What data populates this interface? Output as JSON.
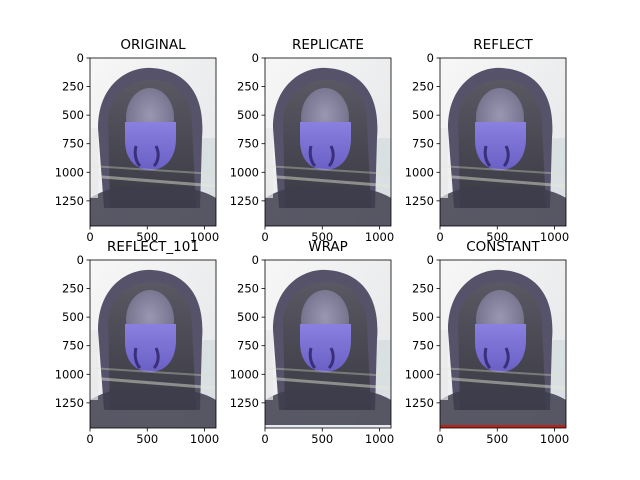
{
  "figure": {
    "background": "#ffffff",
    "layout": "2x3 grid of image subplots"
  },
  "chart_data": [
    {
      "type": "image",
      "title": "ORIGINAL",
      "xticks": [
        0,
        500,
        1000
      ],
      "yticks": [
        0,
        250,
        500,
        750,
        1000,
        1250
      ],
      "xlim": [
        0,
        1100
      ],
      "ylim": [
        1470,
        0
      ],
      "border": "none",
      "border_color": ""
    },
    {
      "type": "image",
      "title": "REPLICATE",
      "xticks": [
        0,
        500,
        1000
      ],
      "yticks": [
        0,
        250,
        500,
        750,
        1000,
        1250
      ],
      "xlim": [
        0,
        1100
      ],
      "ylim": [
        1470,
        0
      ],
      "border": "replicate",
      "border_color": ""
    },
    {
      "type": "image",
      "title": "REFLECT",
      "xticks": [
        0,
        500,
        1000
      ],
      "yticks": [
        0,
        250,
        500,
        750,
        1000,
        1250
      ],
      "xlim": [
        0,
        1100
      ],
      "ylim": [
        1470,
        0
      ],
      "border": "reflect",
      "border_color": ""
    },
    {
      "type": "image",
      "title": "REFLECT_101",
      "xticks": [
        0,
        500,
        1000
      ],
      "yticks": [
        0,
        250,
        500,
        750,
        1000,
        1250
      ],
      "xlim": [
        0,
        1100
      ],
      "ylim": [
        1470,
        0
      ],
      "border": "reflect_101",
      "border_color": ""
    },
    {
      "type": "image",
      "title": "WRAP",
      "xticks": [
        0,
        500,
        1000
      ],
      "yticks": [
        0,
        250,
        500,
        750,
        1000,
        1250
      ],
      "xlim": [
        0,
        1100
      ],
      "ylim": [
        1470,
        0
      ],
      "border": "wrap",
      "border_color": "#e6e9ee"
    },
    {
      "type": "image",
      "title": "CONSTANT",
      "xticks": [
        0,
        500,
        1000
      ],
      "yticks": [
        0,
        250,
        500,
        750,
        1000,
        1250
      ],
      "xlim": [
        0,
        1100
      ],
      "ylim": [
        1470,
        0
      ],
      "border": "constant",
      "border_color": "#b3261e"
    }
  ],
  "photo_colors": {
    "bright_bg": "#eeeeee",
    "hood": "#5e5a6c",
    "hood_dark": "#3c394a",
    "face": "#8e8ba9",
    "mask": "#7a6fd0",
    "mask_dark": "#4b3f8c",
    "hair": "#4f4d57",
    "shoulder": "#3f3e4e",
    "window": "#cfd8dc"
  }
}
